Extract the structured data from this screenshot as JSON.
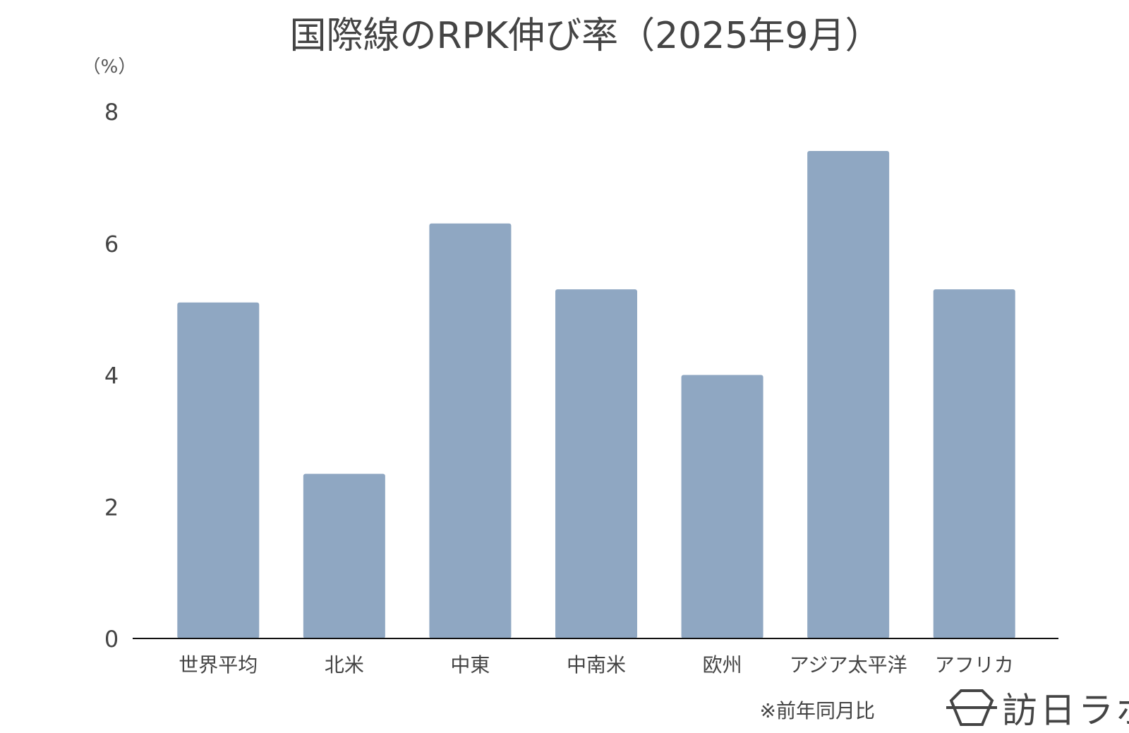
{
  "chart_data": {
    "type": "bar",
    "title": "国際線のRPK伸び率（2025年9月）",
    "ylabel": "（%）",
    "xlabel": "",
    "categories": [
      "世界平均",
      "北米",
      "中東",
      "中南米",
      "欧州",
      "アジア太平洋",
      "アフリカ"
    ],
    "values": [
      5.1,
      2.5,
      6.3,
      5.3,
      4.0,
      7.4,
      5.3
    ],
    "ylim": [
      0,
      8
    ],
    "yticks": [
      "0",
      "2",
      "4",
      "6",
      "8"
    ],
    "grid": false,
    "legend": "none",
    "bar_color": "#8fa7c2"
  },
  "note": "※前年同月比",
  "logo": {
    "text": "訪日ラボ",
    "icon": "hexagon-logo-icon"
  }
}
